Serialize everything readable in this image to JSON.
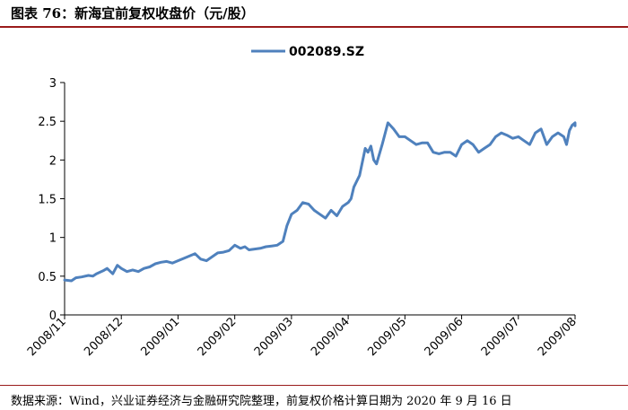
{
  "figure": {
    "title": "图表 76：新海宜前复权收盘价（元/股）",
    "source": "数据来源：Wind，兴业证券经济与金融研究院整理，前复权价格计算日期为 2020 年 9 月 16 日"
  },
  "chart_data": {
    "type": "line",
    "title": "",
    "xlabel": "",
    "ylabel": "",
    "ylim": [
      0,
      3
    ],
    "yticks": [
      "0",
      "0.5",
      "1",
      "1.5",
      "2",
      "2.5",
      "3"
    ],
    "xticks": [
      "2008/11",
      "2008/12",
      "2009/01",
      "2009/02",
      "2009/03",
      "2009/04",
      "2009/05",
      "2009/06",
      "2009/07",
      "2009/08"
    ],
    "grid": false,
    "legend_position": "top-center",
    "line_color": "#4f81bd",
    "series": [
      {
        "name": "002089.SZ",
        "x": [
          0,
          0.12,
          0.2,
          0.3,
          0.42,
          0.5,
          0.56,
          0.62,
          0.68,
          0.75,
          0.85,
          0.93,
          1.0,
          1.1,
          1.2,
          1.3,
          1.4,
          1.5,
          1.6,
          1.7,
          1.8,
          1.9,
          2.0,
          2.1,
          2.2,
          2.3,
          2.4,
          2.5,
          2.6,
          2.7,
          2.8,
          2.9,
          3.0,
          3.1,
          3.18,
          3.25,
          3.35,
          3.45,
          3.55,
          3.65,
          3.75,
          3.85,
          3.92,
          4.0,
          4.1,
          4.2,
          4.3,
          4.4,
          4.5,
          4.6,
          4.7,
          4.8,
          4.9,
          5.0,
          5.05,
          5.1,
          5.2,
          5.3,
          5.35,
          5.4,
          5.45,
          5.5,
          5.6,
          5.7,
          5.8,
          5.9,
          6.0,
          6.1,
          6.2,
          6.3,
          6.4,
          6.5,
          6.6,
          6.7,
          6.8,
          6.9,
          7.0,
          7.1,
          7.2,
          7.3,
          7.4,
          7.5,
          7.6,
          7.7,
          7.8,
          7.9,
          8.0,
          8.1,
          8.2,
          8.3,
          8.4,
          8.5,
          8.6,
          8.7,
          8.8,
          8.85,
          8.9,
          8.95,
          9.0,
          9.05
        ],
        "y": [
          0.45,
          0.44,
          0.48,
          0.49,
          0.51,
          0.5,
          0.53,
          0.55,
          0.57,
          0.6,
          0.53,
          0.64,
          0.6,
          0.56,
          0.58,
          0.56,
          0.6,
          0.62,
          0.66,
          0.68,
          0.69,
          0.67,
          0.7,
          0.73,
          0.76,
          0.79,
          0.72,
          0.7,
          0.75,
          0.8,
          0.81,
          0.83,
          0.9,
          0.86,
          0.88,
          0.84,
          0.85,
          0.86,
          0.88,
          0.89,
          0.9,
          0.95,
          1.15,
          1.3,
          1.35,
          1.45,
          1.43,
          1.35,
          1.3,
          1.25,
          1.35,
          1.28,
          1.4,
          1.45,
          1.5,
          1.65,
          1.8,
          2.15,
          2.1,
          2.18,
          2.0,
          1.95,
          2.2,
          2.48,
          2.4,
          2.3,
          2.3,
          2.25,
          2.2,
          2.22,
          2.22,
          2.1,
          2.08,
          2.1,
          2.1,
          2.05,
          2.2,
          2.25,
          2.2,
          2.1,
          2.15,
          2.2,
          2.3,
          2.35,
          2.32,
          2.28,
          2.3,
          2.25,
          2.2,
          2.35,
          2.4,
          2.2,
          2.3,
          2.35,
          2.3,
          2.2,
          2.38,
          2.45,
          2.48,
          2.44
        ]
      }
    ]
  }
}
